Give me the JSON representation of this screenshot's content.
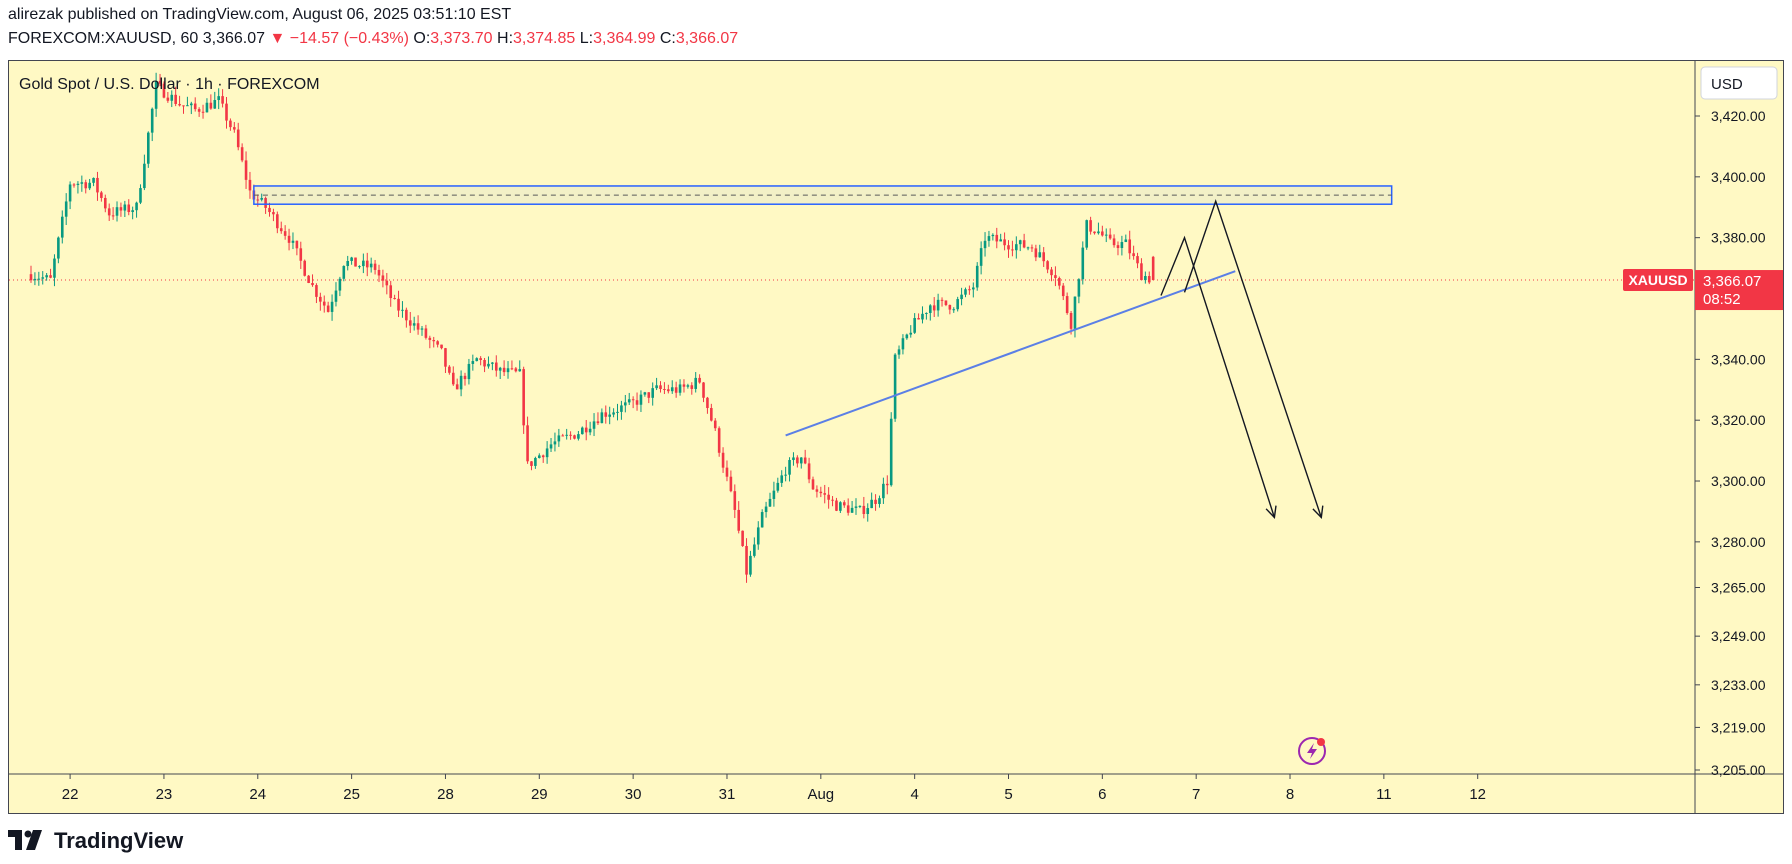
{
  "header": {
    "published": "alirezak published on TradingView.com, August 06, 2025 03:51:10 EST",
    "symbol": "FOREXCOM:XAUUSD, 60",
    "last": "3,366.07",
    "change": "▼ −14.57 (−0.43%)",
    "o_label": "O:",
    "o_value": "3,373.70",
    "h_label": "H:",
    "h_value": "3,374.85",
    "l_label": "L:",
    "l_value": "3,364.99",
    "c_label": "C:",
    "c_value": "3,366.07"
  },
  "chart_title": "Gold Spot / U.S. Dollar · 1h · FOREXCOM",
  "currency_button": "USD",
  "price_tag": {
    "symbol": "XAUUSD",
    "price": "3,366.07",
    "countdown": "08:52"
  },
  "brand": "TradingView",
  "colors": {
    "up": "#089981",
    "down": "#f23645",
    "background": "#fff9c4",
    "zone": "#2962ff",
    "trendline": "#5b7fe6"
  },
  "chart_data": {
    "type": "candlestick",
    "title": "Gold Spot / U.S. Dollar · 1h · FOREXCOM",
    "xlabel": "",
    "ylabel": "USD",
    "ylim": [
      3205,
      3435
    ],
    "y_ticks": [
      3420,
      3400,
      3380,
      3366.07,
      3340,
      3320,
      3300,
      3280,
      3265,
      3249,
      3233,
      3219,
      3205
    ],
    "y_tick_labels": [
      "3,420.00",
      "3,400.00",
      "3,380.00",
      "3,366.07",
      "3,340.00",
      "3,320.00",
      "3,300.00",
      "3,280.00",
      "3,265.00",
      "3,249.00",
      "3,233.00",
      "3,219.00",
      "3,205.00"
    ],
    "x_ticks": [
      {
        "label": "22",
        "i": 10
      },
      {
        "label": "23",
        "i": 34
      },
      {
        "label": "24",
        "i": 58
      },
      {
        "label": "25",
        "i": 82
      },
      {
        "label": "28",
        "i": 106
      },
      {
        "label": "29",
        "i": 130
      },
      {
        "label": "30",
        "i": 154
      },
      {
        "label": "31",
        "i": 178
      },
      {
        "label": "Aug",
        "i": 202
      },
      {
        "label": "4",
        "i": 226
      },
      {
        "label": "5",
        "i": 250
      },
      {
        "label": "6",
        "i": 274
      },
      {
        "label": "7",
        "i": 298
      },
      {
        "label": "8",
        "i": 322
      },
      {
        "label": "11",
        "i": 346
      },
      {
        "label": "12",
        "i": 370
      }
    ],
    "last_price": 3366.07,
    "price_path": [
      {
        "i": 0,
        "p": 3368
      },
      {
        "i": 5,
        "p": 3366
      },
      {
        "i": 10,
        "p": 3398
      },
      {
        "i": 16,
        "p": 3398
      },
      {
        "i": 20,
        "p": 3388
      },
      {
        "i": 27,
        "p": 3390
      },
      {
        "i": 32,
        "p": 3430
      },
      {
        "i": 38,
        "p": 3424
      },
      {
        "i": 42,
        "p": 3422
      },
      {
        "i": 48,
        "p": 3425
      },
      {
        "i": 52,
        "p": 3414
      },
      {
        "i": 56,
        "p": 3395
      },
      {
        "i": 60,
        "p": 3390
      },
      {
        "i": 66,
        "p": 3380
      },
      {
        "i": 72,
        "p": 3364
      },
      {
        "i": 76,
        "p": 3356
      },
      {
        "i": 80,
        "p": 3372
      },
      {
        "i": 88,
        "p": 3370
      },
      {
        "i": 93,
        "p": 3358
      },
      {
        "i": 99,
        "p": 3350
      },
      {
        "i": 105,
        "p": 3342
      },
      {
        "i": 108,
        "p": 3330
      },
      {
        "i": 114,
        "p": 3340
      },
      {
        "i": 120,
        "p": 3336
      },
      {
        "i": 125,
        "p": 3335
      },
      {
        "i": 127,
        "p": 3305
      },
      {
        "i": 133,
        "p": 3312
      },
      {
        "i": 140,
        "p": 3316
      },
      {
        "i": 146,
        "p": 3322
      },
      {
        "i": 153,
        "p": 3325
      },
      {
        "i": 160,
        "p": 3330
      },
      {
        "i": 166,
        "p": 3330
      },
      {
        "i": 171,
        "p": 3333
      },
      {
        "i": 175,
        "p": 3316
      },
      {
        "i": 180,
        "p": 3290
      },
      {
        "i": 183,
        "p": 3270
      },
      {
        "i": 187,
        "p": 3288
      },
      {
        "i": 193,
        "p": 3304
      },
      {
        "i": 197,
        "p": 3308
      },
      {
        "i": 200,
        "p": 3298
      },
      {
        "i": 206,
        "p": 3292
      },
      {
        "i": 212,
        "p": 3290
      },
      {
        "i": 216,
        "p": 3294
      },
      {
        "i": 219,
        "p": 3300
      },
      {
        "i": 221,
        "p": 3340
      },
      {
        "i": 225,
        "p": 3350
      },
      {
        "i": 230,
        "p": 3358
      },
      {
        "i": 236,
        "p": 3358
      },
      {
        "i": 241,
        "p": 3364
      },
      {
        "i": 244,
        "p": 3380
      },
      {
        "i": 250,
        "p": 3378
      },
      {
        "i": 256,
        "p": 3377
      },
      {
        "i": 262,
        "p": 3368
      },
      {
        "i": 266,
        "p": 3352
      },
      {
        "i": 270,
        "p": 3384
      },
      {
        "i": 273,
        "p": 3382
      },
      {
        "i": 276,
        "p": 3378
      },
      {
        "i": 280,
        "p": 3378
      },
      {
        "i": 284,
        "p": 3368
      },
      {
        "i": 287,
        "p": 3366
      }
    ],
    "annotations": {
      "resistance_zone": {
        "i_start": 57,
        "i_end": 348,
        "p_top": 3397,
        "p_bottom": 3391,
        "p_mid": 3394
      },
      "trendline": {
        "i_start": 193,
        "p_start": 3315,
        "i_end": 308,
        "p_end": 3369
      },
      "arrow_1": [
        {
          "i": 289,
          "p": 3361
        },
        {
          "i": 295,
          "p": 3380
        },
        {
          "i": 318,
          "p": 3288
        }
      ],
      "arrow_2": [
        {
          "i": 295,
          "p": 3362
        },
        {
          "i": 303,
          "p": 3392
        },
        {
          "i": 330,
          "p": 3288
        }
      ]
    }
  }
}
